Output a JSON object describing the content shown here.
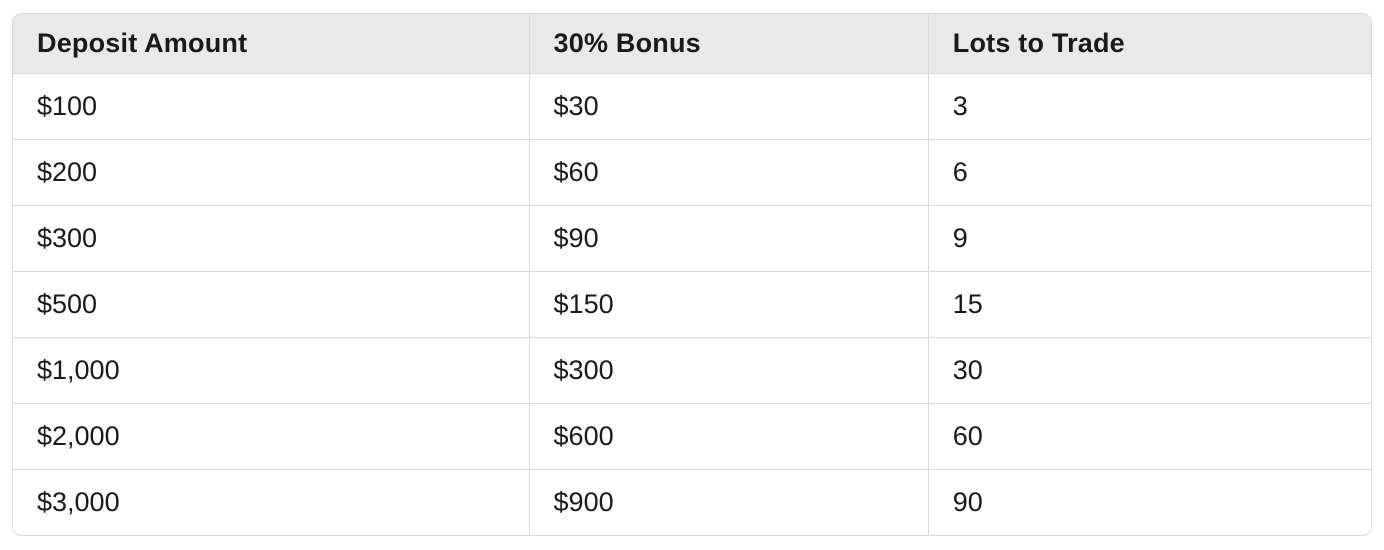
{
  "colors": {
    "header_bg": "#e9e9e9",
    "border": "#d9d9d9",
    "row_bg": "#ffffff",
    "text": "#1a1a1a"
  },
  "table": {
    "columns": [
      "Deposit Amount",
      "30% Bonus",
      "Lots to Trade"
    ],
    "rows": [
      [
        "$100",
        "$30",
        "3"
      ],
      [
        "$200",
        "$60",
        "6"
      ],
      [
        "$300",
        "$90",
        "9"
      ],
      [
        "$500",
        "$150",
        "15"
      ],
      [
        "$1,000",
        "$300",
        "30"
      ],
      [
        "$2,000",
        "$600",
        "60"
      ],
      [
        "$3,000",
        "$900",
        "90"
      ]
    ]
  },
  "chart_data": {
    "type": "table",
    "title": "",
    "columns": [
      "Deposit Amount",
      "30% Bonus",
      "Lots to Trade"
    ],
    "rows": [
      [
        "$100",
        "$30",
        "3"
      ],
      [
        "$200",
        "$60",
        "6"
      ],
      [
        "$300",
        "$90",
        "9"
      ],
      [
        "$500",
        "$150",
        "15"
      ],
      [
        "$1,000",
        "$300",
        "30"
      ],
      [
        "$2,000",
        "$600",
        "60"
      ],
      [
        "$3,000",
        "$900",
        "90"
      ]
    ],
    "deposit_amounts_usd": [
      100,
      200,
      300,
      500,
      1000,
      2000,
      3000
    ],
    "bonus_30pct_usd": [
      30,
      60,
      90,
      150,
      300,
      600,
      900
    ],
    "lots_to_trade": [
      3,
      6,
      9,
      15,
      30,
      60,
      90
    ]
  }
}
